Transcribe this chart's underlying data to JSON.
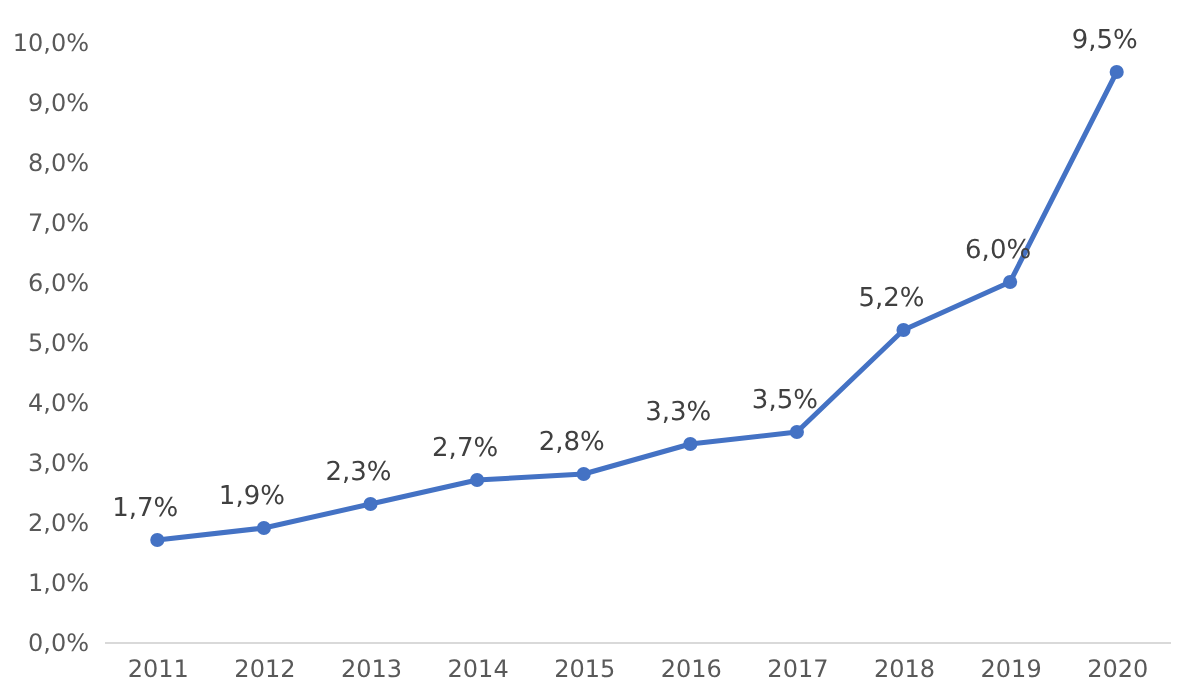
{
  "chart_data": {
    "type": "line",
    "categories": [
      "2011",
      "2012",
      "2013",
      "2014",
      "2015",
      "2016",
      "2017",
      "2018",
      "2019",
      "2020"
    ],
    "values": [
      1.7,
      1.9,
      2.3,
      2.7,
      2.8,
      3.3,
      3.5,
      5.2,
      6.0,
      9.5
    ],
    "value_labels": [
      "1,7%",
      "1,9%",
      "2,3%",
      "2,7%",
      "2,8%",
      "3,3%",
      "3,5%",
      "5,2%",
      "6,0%",
      "9,5%"
    ],
    "color": "#4472c4",
    "ylim": [
      0,
      10
    ],
    "yticks": [
      {
        "value": 0,
        "label": "0,0%"
      },
      {
        "value": 1,
        "label": "1,0%"
      },
      {
        "value": 2,
        "label": "2,0%"
      },
      {
        "value": 3,
        "label": "3,0%"
      },
      {
        "value": 4,
        "label": "4,0%"
      },
      {
        "value": 5,
        "label": "5,0%"
      },
      {
        "value": 6,
        "label": "6,0%"
      },
      {
        "value": 7,
        "label": "7,0%"
      },
      {
        "value": 8,
        "label": "8,0%"
      },
      {
        "value": 9,
        "label": "9,0%"
      },
      {
        "value": 10,
        "label": "10,0%"
      }
    ],
    "marker": "circle",
    "line_style": "solid",
    "grid": false
  }
}
